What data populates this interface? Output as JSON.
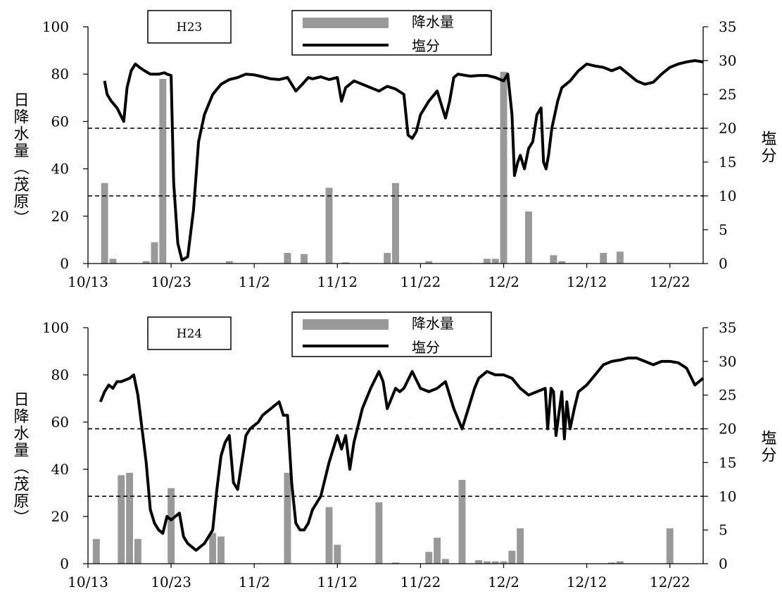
{
  "chart_data": [
    {
      "type": "bar",
      "title": "H23",
      "x_tick_labels": [
        "10/13",
        "10/23",
        "11/2",
        "11/12",
        "11/22",
        "12/2",
        "12/12",
        "12/22"
      ],
      "x_tick_days": [
        0,
        10,
        20,
        30,
        40,
        50,
        60,
        70
      ],
      "xlim": [
        0,
        74
      ],
      "y_left": {
        "label": "日降水量（茂原）",
        "ylim": [
          0,
          100
        ],
        "ticks": [
          "0",
          "20",
          "40",
          "60",
          "80",
          "100"
        ]
      },
      "y_right": {
        "label": "塩分",
        "ylim": [
          0,
          35
        ],
        "ticks": [
          "0",
          "5",
          "10",
          "15",
          "20",
          "25",
          "30",
          "35"
        ]
      },
      "reference_lines_salinity": [
        20,
        10
      ],
      "legend": {
        "placement": "top-center",
        "rain": "降水量",
        "salinity": "塩分"
      },
      "rainfall": {
        "name": "降水量",
        "color": "#999999",
        "day": [
          2,
          3,
          7,
          8,
          9,
          17,
          24,
          26,
          29,
          31,
          36,
          37,
          41,
          48,
          49,
          50,
          53,
          56,
          57,
          62,
          64
        ],
        "value": [
          34,
          2,
          1,
          9,
          78,
          1,
          4.5,
          4,
          32,
          0.5,
          4.5,
          34,
          1,
          2,
          2,
          81,
          22,
          3.5,
          1,
          4.5,
          5
        ]
      },
      "salinity": {
        "name": "塩分",
        "color": "#000000",
        "day": [
          2,
          2.3,
          2.8,
          3.5,
          3.9,
          4.3,
          4.7,
          5.2,
          5.7,
          6.2,
          6.8,
          7.5,
          8.5,
          9.2,
          9.5,
          10,
          10.3,
          10.8,
          11.3,
          12,
          12.7,
          13.3,
          14,
          15,
          16,
          17,
          18,
          19,
          20,
          21,
          22,
          23,
          24,
          25,
          26,
          26.5,
          27,
          28,
          29,
          30,
          30.5,
          31,
          32,
          33,
          34,
          35,
          36,
          37,
          38,
          38.5,
          39,
          39.5,
          40,
          41,
          42,
          43,
          43.5,
          44,
          44.5,
          45,
          46,
          47,
          48,
          49,
          50,
          50.5,
          51,
          51.3,
          51.7,
          52,
          52.5,
          53,
          53.5,
          54,
          54.5,
          54.8,
          55.1,
          55.4,
          55.8,
          56.5,
          57,
          58,
          59,
          60,
          61,
          62,
          63,
          64,
          65,
          66,
          67,
          68,
          69,
          70,
          71,
          72,
          73,
          74
        ],
        "value": [
          27,
          25,
          24,
          23,
          22,
          21,
          26,
          28.5,
          29.5,
          29,
          28.5,
          28,
          28,
          28.2,
          28,
          27.8,
          12,
          3,
          0.5,
          1,
          8,
          18,
          22,
          25,
          26.5,
          27.2,
          27.5,
          28,
          27.9,
          27.6,
          27.3,
          27.2,
          27.5,
          25.5,
          26.8,
          27.5,
          27.3,
          27.6,
          27.2,
          27.5,
          24,
          26,
          27,
          26.5,
          26,
          25.5,
          26.2,
          25.8,
          25,
          19,
          18.5,
          19.5,
          22,
          24,
          25.5,
          21.5,
          24,
          27.5,
          28,
          27.9,
          27.7,
          27.8,
          27.8,
          27.5,
          27,
          28,
          22,
          13,
          15,
          16,
          14,
          17,
          18,
          22,
          23,
          15,
          14,
          16,
          20,
          24,
          26,
          27,
          28.5,
          29.5,
          29.2,
          29,
          28.5,
          29,
          28,
          27,
          26.5,
          26.8,
          28,
          29,
          29.5,
          29.8,
          30,
          29.8
        ]
      }
    },
    {
      "type": "bar",
      "title": "H24",
      "x_tick_labels": [
        "10/13",
        "10/23",
        "11/2",
        "11/12",
        "11/22",
        "12/2",
        "12/12",
        "12/22"
      ],
      "x_tick_days": [
        0,
        10,
        20,
        30,
        40,
        50,
        60,
        70
      ],
      "xlim": [
        0,
        74
      ],
      "y_left": {
        "label": "日降水量（茂原）",
        "ylim": [
          0,
          100
        ],
        "ticks": [
          "0",
          "20",
          "40",
          "60",
          "80",
          "100"
        ]
      },
      "y_right": {
        "label": "塩分",
        "ylim": [
          0,
          35
        ],
        "ticks": [
          "0",
          "5",
          "10",
          "15",
          "20",
          "25",
          "30",
          "35"
        ]
      },
      "reference_lines_salinity": [
        20,
        10
      ],
      "legend": {
        "placement": "top-center",
        "rain": "降水量",
        "salinity": "塩分"
      },
      "rainfall": {
        "name": "降水量",
        "color": "#999999",
        "day": [
          1,
          4,
          5,
          6,
          10,
          15,
          16,
          24,
          29,
          30,
          35,
          37,
          41,
          42,
          43,
          45,
          47,
          48,
          49,
          50,
          51,
          52,
          63,
          64,
          70
        ],
        "value": [
          10.5,
          37.5,
          38.5,
          10.5,
          32,
          13,
          11.5,
          38.5,
          24,
          8,
          26,
          0.5,
          5,
          11,
          2,
          35.5,
          1.5,
          1,
          1,
          1,
          5.5,
          15,
          0.5,
          1,
          15
        ]
      },
      "salinity": {
        "name": "塩分",
        "color": "#000000",
        "day": [
          1.5,
          2,
          2.5,
          3,
          3.5,
          4,
          5,
          5.5,
          6,
          6.5,
          7,
          7.5,
          8,
          8.5,
          9,
          9.5,
          10,
          10.5,
          11,
          11.5,
          12,
          13,
          14,
          15,
          15.5,
          16,
          16.5,
          17,
          17.5,
          18,
          19,
          19.5,
          20,
          20.5,
          21,
          21.5,
          22,
          22.5,
          23,
          23.5,
          24,
          24.5,
          25,
          25.5,
          26,
          26.5,
          27,
          28,
          29,
          30,
          30.5,
          31,
          31.5,
          32,
          33,
          34,
          35,
          35.5,
          36,
          37,
          37.5,
          38,
          39,
          40,
          41,
          42,
          43,
          44,
          45,
          45.5,
          46,
          46.5,
          47,
          48,
          49,
          50,
          51,
          52,
          53,
          54,
          55,
          55.3,
          55.7,
          56,
          56.3,
          57,
          57.3,
          57.6,
          58,
          58.5,
          59,
          60,
          61,
          62,
          63,
          64,
          65,
          66,
          67,
          68,
          69,
          70,
          71,
          72,
          73,
          74
        ],
        "value": [
          24,
          25.5,
          26.5,
          26,
          27,
          27,
          27.5,
          28,
          25,
          20,
          15,
          8,
          6,
          5,
          4.5,
          7,
          6.5,
          7,
          7.5,
          4,
          3,
          2,
          3,
          5,
          11,
          16,
          18,
          19,
          12,
          11,
          19,
          20,
          20.5,
          21,
          22,
          22.5,
          23,
          23.5,
          24,
          22,
          22,
          12,
          6,
          5,
          5,
          6,
          8,
          10,
          15,
          19,
          17,
          19,
          14,
          18,
          23,
          26,
          28.5,
          27,
          23,
          26,
          25.5,
          26,
          28.5,
          26,
          25.5,
          26,
          27,
          23,
          20,
          22,
          24,
          26,
          27.5,
          28.5,
          28,
          28,
          27.5,
          26,
          25,
          25.5,
          26,
          20,
          26,
          25.5,
          19,
          25.5,
          18.5,
          24,
          20,
          23,
          25.5,
          26.5,
          28,
          29.5,
          30,
          30.2,
          30.5,
          30.5,
          30,
          29.5,
          30,
          30,
          29.8,
          29,
          26.5,
          27.5
        ]
      }
    }
  ]
}
